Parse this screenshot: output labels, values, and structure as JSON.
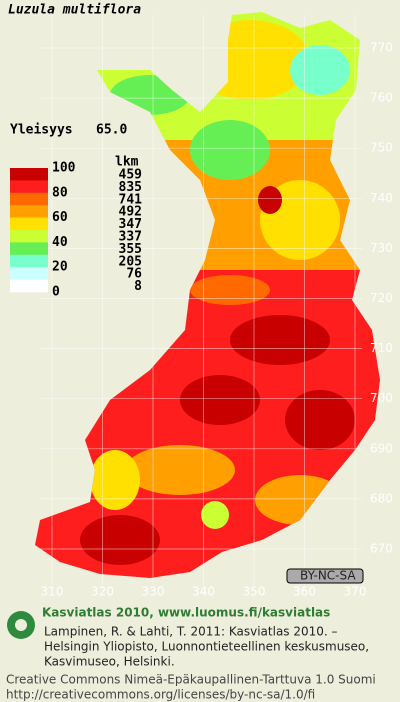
{
  "title": "Luzula multiflora",
  "frequency": {
    "label": "Yleisyys",
    "value": "65.0"
  },
  "legend": {
    "scale_labels": [
      100,
      80,
      60,
      40,
      20,
      0
    ],
    "count_header": "lkm",
    "classes": [
      {
        "color": "#c80000",
        "count": 459
      },
      {
        "color": "#ff1e1e",
        "count": 835
      },
      {
        "color": "#ff6a00",
        "count": 741
      },
      {
        "color": "#ffa000",
        "count": 492
      },
      {
        "color": "#ffe000",
        "count": 347
      },
      {
        "color": "#ccff33",
        "count": 337
      },
      {
        "color": "#66ee55",
        "count": 355
      },
      {
        "color": "#77ffcc",
        "count": 205
      },
      {
        "color": "#ccffff",
        "count": 76
      },
      {
        "color": "#ffffff",
        "count": 8
      }
    ]
  },
  "grid": {
    "northing": [
      770,
      760,
      750,
      740,
      730,
      720,
      710,
      700,
      690,
      680,
      670
    ],
    "easting": [
      310,
      320,
      330,
      340,
      350,
      360,
      370
    ]
  },
  "license_badge": "BY-NC-SA",
  "footer": {
    "heading": "Kasviatlas 2010, www.luomus.fi/kasviatlas",
    "citation": [
      "Lampinen, R. & Lahti, T. 2011: Kasviatlas 2010. –",
      "Helsingin Yliopisto, Luonnontieteellinen keskusmuseo,",
      "Kasvimuseo, Helsinki."
    ],
    "license": "Creative Commons Nimeä-Epäkaupallinen-Tarttuva 1.0 Suomi",
    "url": "http://creativecommons.org/licenses/by-nc-sa/1.0/fi"
  }
}
